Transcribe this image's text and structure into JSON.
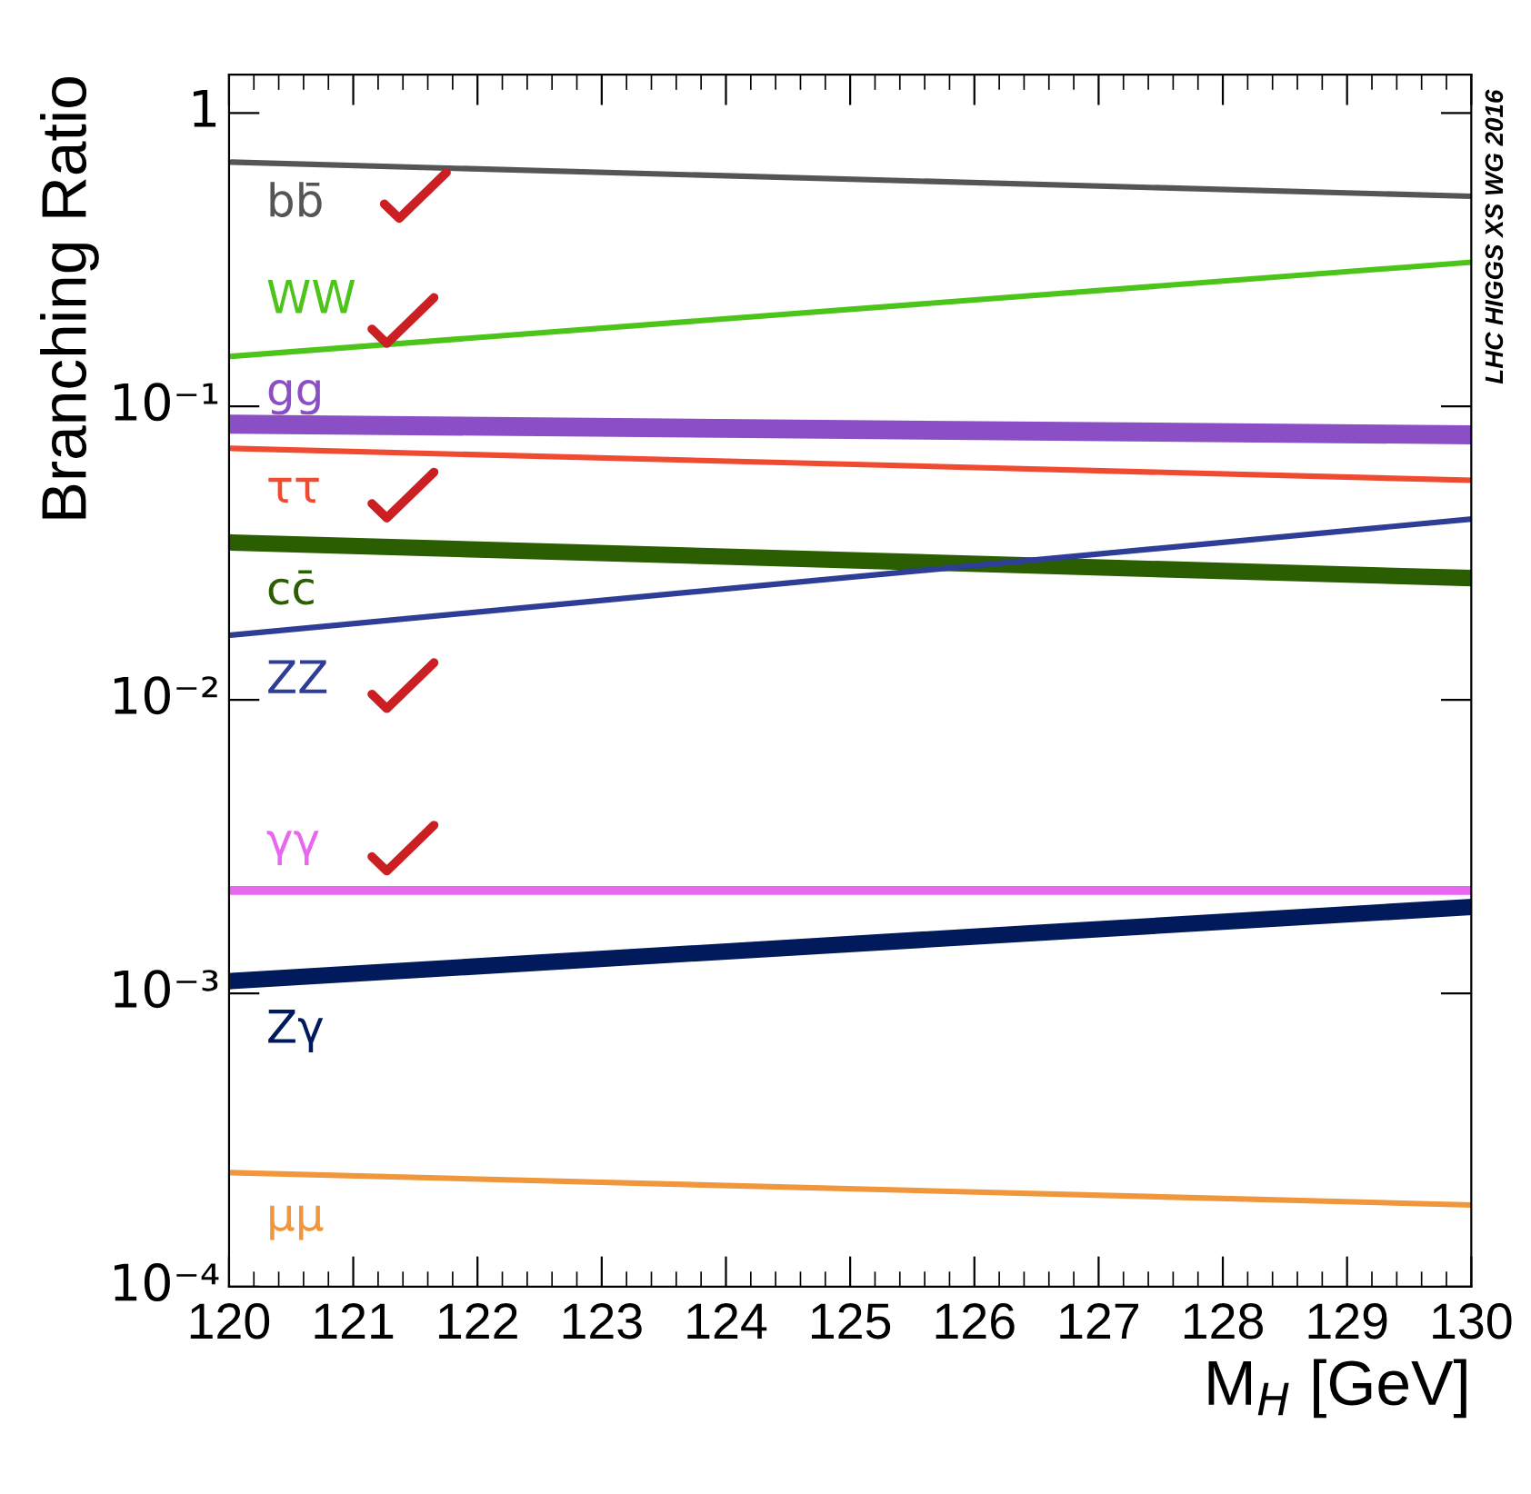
{
  "chart_data": {
    "type": "line",
    "xlabel": "M$_{H}$ [GeV]",
    "ylabel": "Branching Ratio",
    "annotations": [
      "LHC HIGGS XS WG 2016"
    ],
    "x": [
      120,
      130
    ],
    "series": [
      {
        "name": "bb̄",
        "color": "#555555",
        "values": [
          0.68,
          0.52
        ]
      },
      {
        "name": "WW",
        "color": "#4cc41a",
        "values": [
          0.148,
          0.31
        ]
      },
      {
        "name": "gg",
        "color": "#8a4fc4",
        "values": [
          0.087,
          0.08
        ]
      },
      {
        "name": "ττ",
        "color": "#f04a30",
        "values": [
          0.072,
          0.056
        ]
      },
      {
        "name": "cc̄",
        "color": "#2a5e00",
        "values": [
          0.0344,
          0.026
        ]
      },
      {
        "name": "ZZ",
        "color": "#2e3d96",
        "values": [
          0.0166,
          0.0413
        ]
      },
      {
        "name": "γγ",
        "color": "#e866f0",
        "values": [
          0.00224,
          0.00224
        ]
      },
      {
        "name": "Zγ",
        "color": "#001a5c",
        "values": [
          0.0011,
          0.00197
        ]
      },
      {
        "name": "μμ",
        "color": "#f0963c",
        "values": [
          0.000245,
          0.00019
        ]
      }
    ],
    "log": true,
    "xlim": [
      120,
      130
    ],
    "ylim": [
      0.0001,
      1.35
    ],
    "xticks": [
      120,
      121,
      122,
      123,
      124,
      125,
      126,
      127,
      128,
      129,
      130
    ],
    "yticks": [
      {
        "value": 0.0001,
        "label": "10⁻⁴"
      },
      {
        "value": 0.001,
        "label": "10⁻³"
      },
      {
        "value": 0.01,
        "label": "10⁻²"
      },
      {
        "value": 0.1,
        "label": "10⁻¹"
      },
      1
    ],
    "grid": false,
    "legend": false,
    "marker": "none",
    "line_style": "solid"
  }
}
